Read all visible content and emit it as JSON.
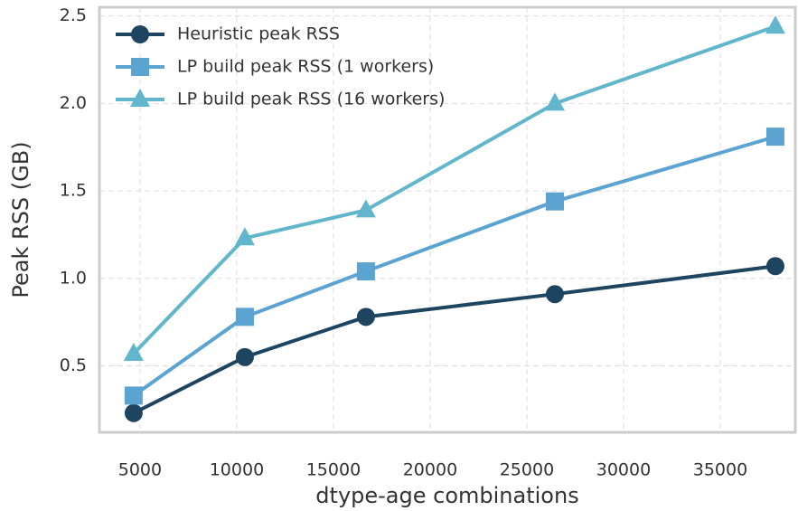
{
  "chart_data": {
    "type": "line",
    "xlabel": "dtype-age combinations",
    "ylabel": "Peak RSS (GB)",
    "x": [
      4670,
      10420,
      16680,
      26450,
      37850
    ],
    "series": [
      {
        "name": "Heuristic peak RSS",
        "color": "#1d4560",
        "marker": "circle",
        "values": [
          0.23,
          0.55,
          0.78,
          0.91,
          1.07
        ]
      },
      {
        "name": "LP build peak RSS (1 workers)",
        "color": "#5ba3d0",
        "marker": "square",
        "values": [
          0.33,
          0.78,
          1.04,
          1.44,
          1.81
        ]
      },
      {
        "name": "LP build peak RSS (16 workers)",
        "color": "#62b6cb",
        "marker": "triangle",
        "values": [
          0.57,
          1.23,
          1.39,
          2.0,
          2.44
        ]
      }
    ],
    "xlim": [
      2900,
      38880
    ],
    "ylim": [
      0.12,
      2.55
    ],
    "xticks": [
      5000,
      10000,
      15000,
      20000,
      25000,
      30000,
      35000
    ],
    "yticks": [
      0.5,
      {
        "value": 1.0,
        "label": "1.0"
      },
      1.5,
      {
        "value": 2.0,
        "label": "2.0"
      },
      2.5
    ],
    "grid": true,
    "legend": "upper left"
  }
}
